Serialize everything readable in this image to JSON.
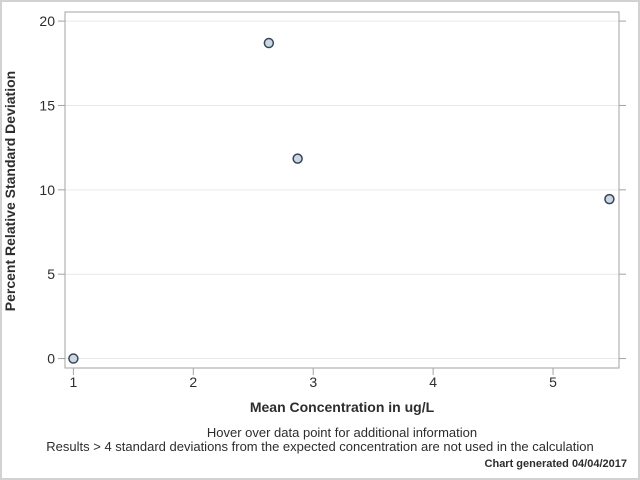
{
  "chart_data": {
    "type": "scatter",
    "title": "",
    "xlabel": "Mean Concentration in ug/L",
    "ylabel": "Percent Relative Standard Deviation",
    "x_ticks": [
      1,
      2,
      3,
      4,
      5
    ],
    "y_ticks": [
      0,
      5,
      10,
      15,
      20
    ],
    "xlim": [
      0.93,
      5.55
    ],
    "ylim": [
      -0.56,
      20.54
    ],
    "grid": "horizontal-only",
    "legend": "none",
    "points": [
      {
        "x": 1.0,
        "y": 0.0
      },
      {
        "x": 2.63,
        "y": 18.7
      },
      {
        "x": 2.87,
        "y": 11.85
      },
      {
        "x": 5.47,
        "y": 9.45
      }
    ]
  },
  "footnotes": {
    "hover": "Hover over data point for additional information",
    "exclusion": "Results > 4 standard deviations from the expected concentration are not used in the calculation",
    "generated": "Chart generated 04/04/2017"
  },
  "colors": {
    "marker_fill": "#ccd7e6",
    "marker_stroke": "#384555",
    "frame": "#a3a3a3",
    "tick": "#a3a3a3",
    "gridline": "#eaeaea",
    "text": "#2d2d2d",
    "outer_border": "#d2d2d2",
    "background": "#ffffff"
  }
}
